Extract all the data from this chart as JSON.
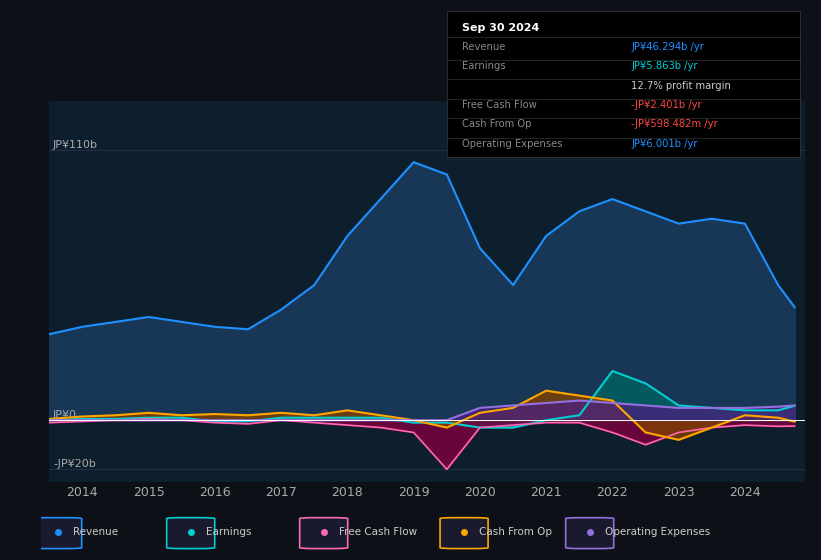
{
  "bg_color": "#0d1117",
  "plot_bg_color": "#0d1f2d",
  "title": "Sep 30 2024",
  "xlim": [
    2013.5,
    2024.9
  ],
  "ylim": [
    -25,
    130
  ],
  "ytick_labels": [
    "JP¥0",
    "JP¥110b"
  ],
  "ytick_neg_label": "-JP¥20b",
  "xlabel_years": [
    2014,
    2015,
    2016,
    2017,
    2018,
    2019,
    2020,
    2021,
    2022,
    2023,
    2024
  ],
  "revenue_x": [
    2013.5,
    2014.0,
    2014.5,
    2015.0,
    2015.5,
    2016.0,
    2016.5,
    2017.0,
    2017.5,
    2018.0,
    2018.5,
    2019.0,
    2019.5,
    2020.0,
    2020.5,
    2021.0,
    2021.5,
    2022.0,
    2022.5,
    2023.0,
    2023.5,
    2024.0,
    2024.5,
    2024.75
  ],
  "revenue_y": [
    35,
    38,
    40,
    42,
    40,
    38,
    37,
    45,
    55,
    75,
    90,
    105,
    100,
    70,
    55,
    75,
    85,
    90,
    85,
    80,
    82,
    80,
    55,
    46
  ],
  "earnings_x": [
    2013.5,
    2014.0,
    2014.5,
    2015.0,
    2015.5,
    2016.0,
    2016.5,
    2017.0,
    2017.5,
    2018.0,
    2018.5,
    2019.0,
    2019.5,
    2020.0,
    2020.5,
    2021.0,
    2021.5,
    2022.0,
    2022.5,
    2023.0,
    2023.5,
    2024.0,
    2024.5,
    2024.75
  ],
  "earnings_y": [
    0,
    0.5,
    0.5,
    1,
    1,
    -0.5,
    -0.5,
    1,
    1,
    1,
    1,
    -1,
    -1,
    -3,
    -3,
    0,
    2,
    20,
    15,
    6,
    5,
    4,
    4,
    5.863
  ],
  "fcf_x": [
    2013.5,
    2014.0,
    2014.5,
    2015.0,
    2015.5,
    2016.0,
    2016.5,
    2017.0,
    2017.5,
    2018.0,
    2018.5,
    2019.0,
    2019.5,
    2020.0,
    2020.5,
    2021.0,
    2021.5,
    2022.0,
    2022.5,
    2023.0,
    2023.5,
    2024.0,
    2024.5,
    2024.75
  ],
  "fcf_y": [
    -1,
    -0.5,
    0,
    0.5,
    0,
    -1,
    -1.5,
    0,
    -1,
    -2,
    -3,
    -5,
    -20,
    -3,
    -2,
    -1,
    -1,
    -5,
    -10,
    -5,
    -3,
    -2,
    -2.5,
    -2.401
  ],
  "cashfromop_x": [
    2013.5,
    2014.0,
    2014.5,
    2015.0,
    2015.5,
    2016.0,
    2016.5,
    2017.0,
    2017.5,
    2018.0,
    2018.5,
    2019.0,
    2019.5,
    2020.0,
    2020.5,
    2021.0,
    2021.5,
    2022.0,
    2022.5,
    2023.0,
    2023.5,
    2024.0,
    2024.5,
    2024.75
  ],
  "cashfromop_y": [
    0.5,
    1.5,
    2,
    3,
    2,
    2.5,
    2,
    3,
    2,
    4,
    2,
    0,
    -3,
    3,
    5,
    12,
    10,
    8,
    -5,
    -8,
    -3,
    2,
    1,
    -0.598
  ],
  "opex_x": [
    2013.5,
    2014.0,
    2014.5,
    2015.0,
    2015.5,
    2016.0,
    2016.5,
    2017.0,
    2017.5,
    2018.0,
    2018.5,
    2019.0,
    2019.5,
    2020.0,
    2020.5,
    2021.0,
    2021.5,
    2022.0,
    2022.5,
    2023.0,
    2023.5,
    2024.0,
    2024.5,
    2024.75
  ],
  "opex_y": [
    0,
    0,
    0,
    0,
    0,
    0,
    0,
    0,
    0,
    0,
    0,
    0,
    0,
    5,
    6,
    7,
    8,
    7,
    6,
    5,
    5,
    5,
    5.5,
    6.001
  ],
  "revenue_color": "#1E90FF",
  "earnings_color": "#00CED1",
  "fcf_color": "#FF69B4",
  "cashfromop_color": "#FFA500",
  "opex_color": "#9370DB",
  "revenue_fill": "#1a3a5c",
  "earnings_fill": "#006060",
  "fcf_fill": "#800040",
  "cashfromop_fill": "#804000",
  "opex_fill": "#4a2080",
  "info_rows": [
    {
      "label": "Revenue",
      "value": "JP¥46.294b /yr",
      "lcolor": "#888888",
      "vcolor": "#1E90FF"
    },
    {
      "label": "Earnings",
      "value": "JP¥5.863b /yr",
      "lcolor": "#888888",
      "vcolor": "#00CED1"
    },
    {
      "label": "",
      "value": "12.7% profit margin",
      "lcolor": "#888888",
      "vcolor": "#cccccc"
    },
    {
      "label": "Free Cash Flow",
      "value": "-JP¥2.401b /yr",
      "lcolor": "#888888",
      "vcolor": "#FF4444"
    },
    {
      "label": "Cash From Op",
      "value": "-JP¥598.482m /yr",
      "lcolor": "#888888",
      "vcolor": "#FF4444"
    },
    {
      "label": "Operating Expenses",
      "value": "JP¥6.001b /yr",
      "lcolor": "#888888",
      "vcolor": "#1E90FF"
    }
  ],
  "legend_items": [
    {
      "label": "Revenue",
      "color": "#1E90FF"
    },
    {
      "label": "Earnings",
      "color": "#00CED1"
    },
    {
      "label": "Free Cash Flow",
      "color": "#FF69B4"
    },
    {
      "label": "Cash From Op",
      "color": "#FFA500"
    },
    {
      "label": "Operating Expenses",
      "color": "#9370DB"
    }
  ]
}
